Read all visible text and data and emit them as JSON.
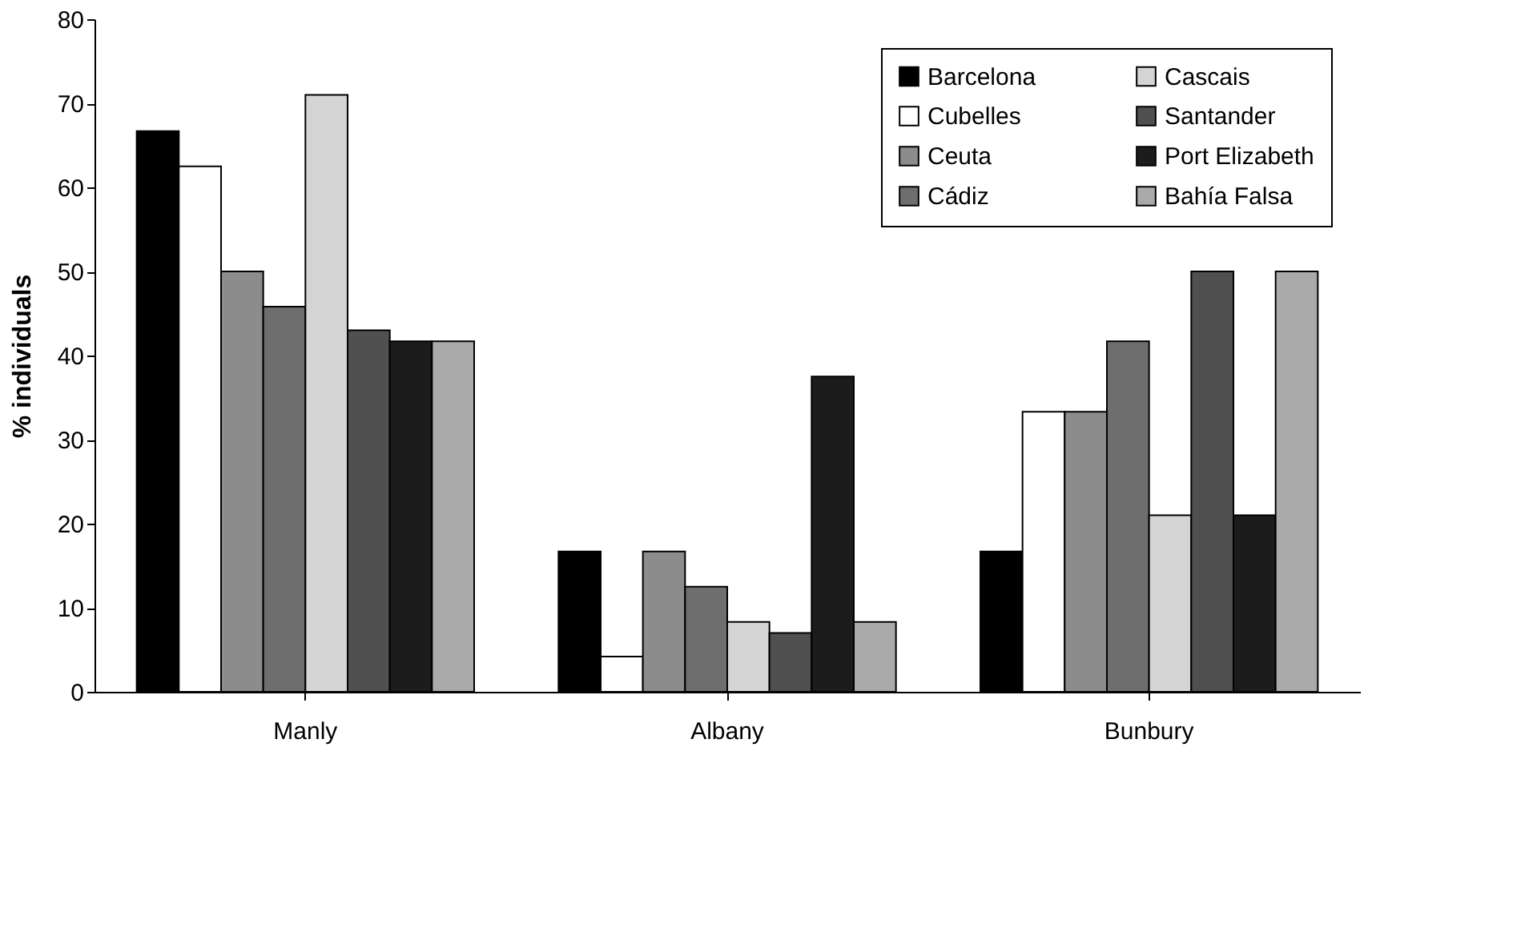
{
  "chart_data": {
    "type": "bar",
    "ylabel": "% individuals",
    "categories": [
      "Manly",
      "Albany",
      "Bunbury"
    ],
    "series": [
      {
        "name": "Barcelona",
        "color": "#000000",
        "values": [
          66.7,
          16.7,
          16.7
        ]
      },
      {
        "name": "Cubelles",
        "color": "#ffffff",
        "values": [
          62.5,
          4.2,
          33.3
        ]
      },
      {
        "name": "Ceuta",
        "color": "#8c8c8c",
        "values": [
          50,
          16.7,
          33.3
        ]
      },
      {
        "name": "Cádiz",
        "color": "#6e6e6e",
        "values": [
          45.8,
          12.5,
          41.7
        ]
      },
      {
        "name": "Cascais",
        "color": "#d4d4d4",
        "values": [
          71,
          8.3,
          21
        ]
      },
      {
        "name": "Santander",
        "color": "#505050",
        "values": [
          43,
          7,
          50
        ]
      },
      {
        "name": "Port Elizabeth",
        "color": "#1c1c1c",
        "values": [
          41.7,
          37.5,
          21
        ]
      },
      {
        "name": "Bahía Falsa",
        "color": "#aaaaaa",
        "values": [
          41.7,
          8.3,
          50
        ]
      }
    ],
    "ylim": [
      0,
      80
    ],
    "yticks": [
      0,
      10,
      20,
      30,
      40,
      50,
      60,
      70,
      80
    ],
    "grid": false,
    "legend": "top right"
  }
}
